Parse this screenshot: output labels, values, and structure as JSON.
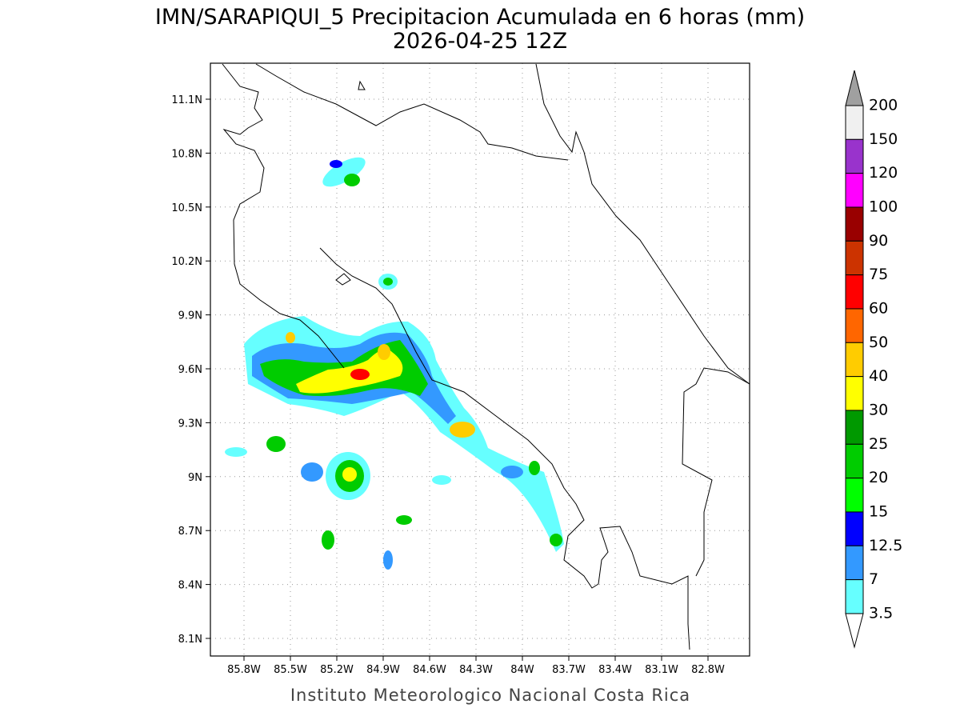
{
  "title": "IMN/SARAPIQUI_5 Precipitacion Acumulada en 6 horas (mm)",
  "subtitle": "2026-04-25 12Z",
  "footer": "Instituto Meteorologico Nacional Costa Rica",
  "map": {
    "lat_labels": [
      "11.1N",
      "10.8N",
      "10.5N",
      "10.2N",
      "9.9N",
      "9.6N",
      "9.3N",
      "9N",
      "8.7N",
      "8.4N",
      "8.1N"
    ],
    "lon_labels": [
      "85.8W",
      "85.5W",
      "85.2W",
      "84.9W",
      "84.6W",
      "84.3W",
      "84W",
      "83.7W",
      "83.4W",
      "83.1W",
      "82.8W"
    ]
  },
  "colorbar": {
    "levels": [
      200,
      150,
      120,
      100,
      90,
      75,
      60,
      50,
      40,
      30,
      25,
      20,
      15,
      12.5,
      7,
      3.5
    ],
    "colors": [
      "#f0f0f0",
      "#9933cc",
      "#ff00ff",
      "#990000",
      "#cc3300",
      "#ff0000",
      "#ff6600",
      "#ffcc00",
      "#ffff00",
      "#009900",
      "#00cc00",
      "#00ff00",
      "#0000ff",
      "#3399ff",
      "#66ffff"
    ],
    "over_color": "#a0a0a0",
    "under_color": "#ffffff"
  }
}
